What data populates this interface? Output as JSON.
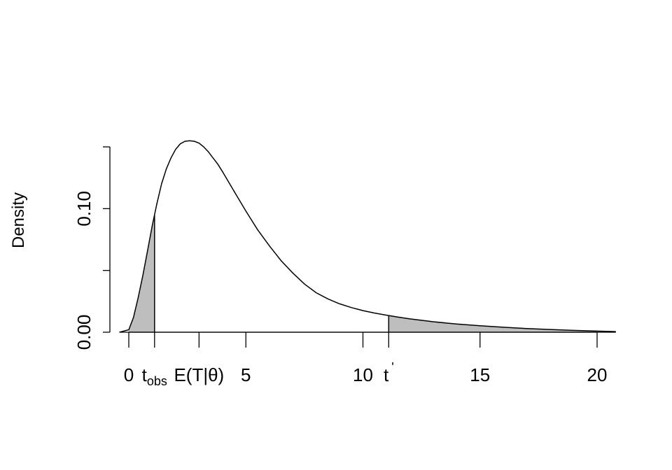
{
  "chart_data": {
    "type": "area",
    "title": "",
    "xlabel": "",
    "ylabel": "Density",
    "xlim": [
      -0.8,
      20.8
    ],
    "ylim": [
      0,
      0.155
    ],
    "x_ticks": [
      0,
      5,
      10,
      15,
      20
    ],
    "x_tick_labels": [
      "0",
      "5",
      "10",
      "15",
      "20"
    ],
    "y_ticks": [
      0.0,
      0.05,
      0.1,
      0.15
    ],
    "y_tick_labels": [
      "0.00",
      "",
      "0.10",
      ""
    ],
    "curve": {
      "x": [
        -0.4,
        0,
        0.2,
        0.4,
        0.6,
        0.8,
        1.0,
        1.2,
        1.4,
        1.6,
        1.8,
        2.0,
        2.2,
        2.4,
        2.6,
        2.8,
        3.0,
        3.2,
        3.4,
        3.6,
        3.8,
        4.0,
        4.5,
        5.0,
        5.5,
        6.0,
        6.5,
        7.0,
        7.5,
        8.0,
        8.5,
        9.0,
        9.5,
        10.0,
        10.5,
        11.0,
        11.5,
        12.0,
        13.0,
        14.0,
        15.0,
        16.0,
        17.0,
        18.0,
        19.0,
        20.0,
        20.8
      ],
      "y": [
        0.0,
        0.002,
        0.012,
        0.028,
        0.046,
        0.066,
        0.086,
        0.104,
        0.12,
        0.132,
        0.141,
        0.148,
        0.1525,
        0.1545,
        0.155,
        0.1545,
        0.153,
        0.15,
        0.146,
        0.141,
        0.136,
        0.13,
        0.114,
        0.098,
        0.083,
        0.07,
        0.058,
        0.048,
        0.039,
        0.032,
        0.027,
        0.023,
        0.02,
        0.0175,
        0.0155,
        0.0138,
        0.0122,
        0.0108,
        0.0085,
        0.0066,
        0.0052,
        0.004,
        0.003,
        0.0022,
        0.0015,
        0.0009,
        0.0005
      ]
    },
    "shaded_regions": [
      {
        "from": 0,
        "to": 1.1
      },
      {
        "from": 11.1,
        "to": 20.8
      }
    ],
    "annotations": [
      {
        "x": 1.1,
        "label_main": "t",
        "label_sub": "obs"
      },
      {
        "x": 3.0,
        "label_main": "E(T|θ)"
      },
      {
        "x": 11.1,
        "label_main": "t",
        "label_sup": "'"
      }
    ]
  }
}
